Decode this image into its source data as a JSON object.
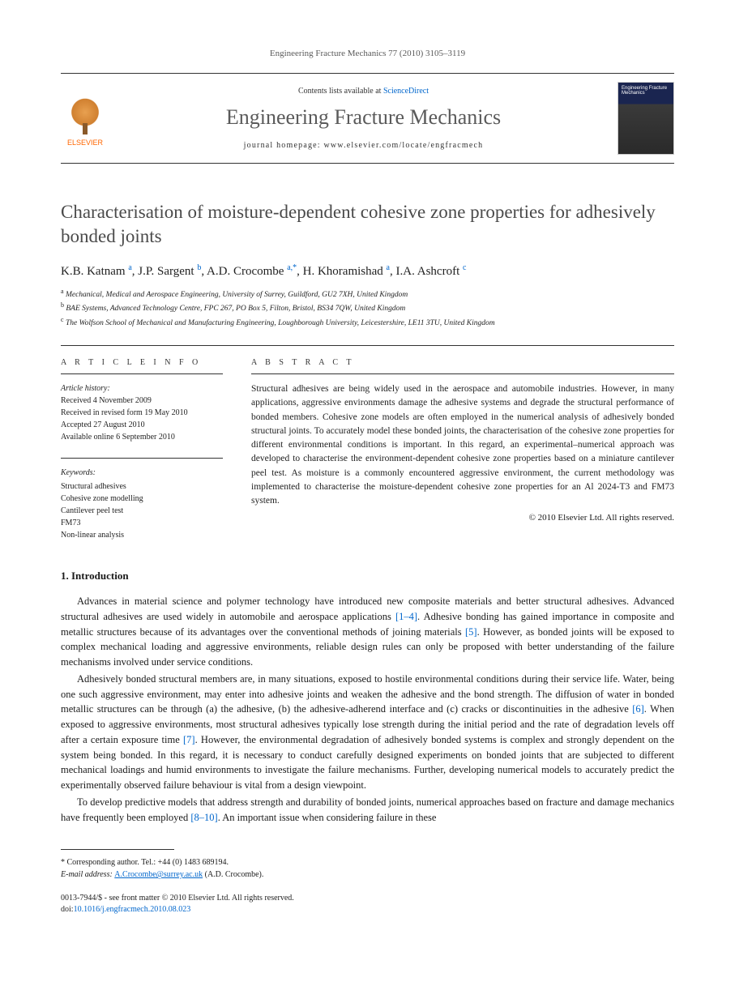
{
  "header_citation": "Engineering Fracture Mechanics 77 (2010) 3105–3119",
  "masthead": {
    "contents_prefix": "Contents lists available at ",
    "contents_link": "ScienceDirect",
    "journal": "Engineering Fracture Mechanics",
    "homepage_label": "journal homepage: www.elsevier.com/locate/engfracmech",
    "publisher_label": "ELSEVIER",
    "cover_text": "Engineering Fracture Mechanics"
  },
  "title": "Characterisation of moisture-dependent cohesive zone properties for adhesively bonded joints",
  "authors_html": "K.B. Katnam <sup>a</sup>, J.P. Sargent <sup>b</sup>, A.D. Crocombe <sup>a,*</sup>, H. Khoramishad <sup>a</sup>, I.A. Ashcroft <sup>c</sup>",
  "affiliations": [
    {
      "sup": "a",
      "text": "Mechanical, Medical and Aerospace Engineering, University of Surrey, Guildford, GU2 7XH, United Kingdom"
    },
    {
      "sup": "b",
      "text": "BAE Systems, Advanced Technology Centre, FPC 267, PO Box 5, Filton, Bristol, BS34 7QW, United Kingdom"
    },
    {
      "sup": "c",
      "text": "The Wolfson School of Mechanical and Manufacturing Engineering, Loughborough University, Leicestershire, LE11 3TU, United Kingdom"
    }
  ],
  "article_info": {
    "heading": "A R T I C L E   I N F O",
    "history_label": "Article history:",
    "history": [
      "Received 4 November 2009",
      "Received in revised form 19 May 2010",
      "Accepted 27 August 2010",
      "Available online 6 September 2010"
    ],
    "keywords_label": "Keywords:",
    "keywords": [
      "Structural adhesives",
      "Cohesive zone modelling",
      "Cantilever peel test",
      "FM73",
      "Non-linear analysis"
    ]
  },
  "abstract": {
    "heading": "A B S T R A C T",
    "text": "Structural adhesives are being widely used in the aerospace and automobile industries. However, in many applications, aggressive environments damage the adhesive systems and degrade the structural performance of bonded members. Cohesive zone models are often employed in the numerical analysis of adhesively bonded structural joints. To accurately model these bonded joints, the characterisation of the cohesive zone properties for different environmental conditions is important. In this regard, an experimental–numerical approach was developed to characterise the environment-dependent cohesive zone properties based on a miniature cantilever peel test. As moisture is a commonly encountered aggressive environment, the current methodology was implemented to characterise the moisture-dependent cohesive zone properties for an Al 2024-T3 and FM73 system.",
    "copyright": "© 2010 Elsevier Ltd. All rights reserved."
  },
  "body": {
    "heading": "1. Introduction",
    "paragraphs": [
      "Advances in material science and polymer technology have introduced new composite materials and better structural adhesives. Advanced structural adhesives are used widely in automobile and aerospace applications [1–4]. Adhesive bonding has gained importance in composite and metallic structures because of its advantages over the conventional methods of joining materials [5]. However, as bonded joints will be exposed to complex mechanical loading and aggressive environments, reliable design rules can only be proposed with better understanding of the failure mechanisms involved under service conditions.",
      "Adhesively bonded structural members are, in many situations, exposed to hostile environmental conditions during their service life. Water, being one such aggressive environment, may enter into adhesive joints and weaken the adhesive and the bond strength. The diffusion of water in bonded metallic structures can be through (a) the adhesive, (b) the adhesive-adherend interface and (c) cracks or discontinuities in the adhesive [6]. When exposed to aggressive environments, most structural adhesives typically lose strength during the initial period and the rate of degradation levels off after a certain exposure time [7]. However, the environmental degradation of adhesively bonded systems is complex and strongly dependent on the system being bonded. In this regard, it is necessary to conduct carefully designed experiments on bonded joints that are subjected to different mechanical loadings and humid environments to investigate the failure mechanisms. Further, developing numerical models to accurately predict the experimentally observed failure behaviour is vital from a design viewpoint.",
      "To develop predictive models that address strength and durability of bonded joints, numerical approaches based on fracture and damage mechanics have frequently been employed [8–10]. An important issue when considering failure in these"
    ]
  },
  "footnote": {
    "corr": "* Corresponding author. Tel.: +44 (0) 1483 689194.",
    "email_label": "E-mail address: ",
    "email": "A.Crocombe@surrey.ac.uk",
    "email_suffix": " (A.D. Crocombe)."
  },
  "footer": {
    "line1": "0013-7944/$ - see front matter © 2010 Elsevier Ltd. All rights reserved.",
    "doi_prefix": "doi:",
    "doi": "10.1016/j.engfracmech.2010.08.023"
  },
  "colors": {
    "link": "#0066cc",
    "orange": "#ff6600",
    "text": "#222222",
    "gray": "#5a5a5a"
  }
}
